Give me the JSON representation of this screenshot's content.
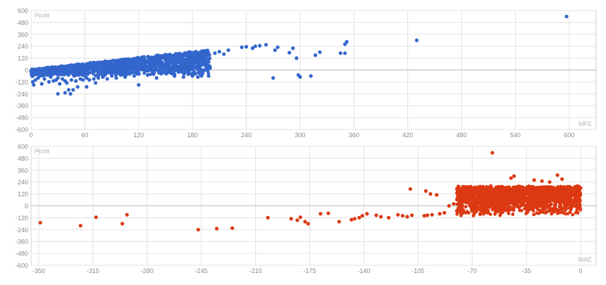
{
  "chart_data": [
    {
      "type": "scatter",
      "ylabel": "Profit",
      "xlabel": "MFE",
      "xlim": [
        0,
        630
      ],
      "ylim": [
        -600,
        600
      ],
      "xticks": [
        "0",
        "60",
        "120",
        "180",
        "240",
        "300",
        "360",
        "420",
        "480",
        "540",
        "600"
      ],
      "yticks": [
        "600",
        "480",
        "360",
        "240",
        "120",
        "0",
        "-120",
        "-240",
        "-360",
        "-480",
        "-600"
      ],
      "grid": true,
      "colors": {
        "series": "#3366cc",
        "grid": "#e3e3e3",
        "tick_text": "#8a8a8a",
        "label_text": "#b5b5b5"
      },
      "series": [
        {
          "points": [
            [
              0,
              -10
            ],
            [
              2,
              -120
            ],
            [
              3,
              -150
            ],
            [
              5,
              -100
            ],
            [
              8,
              -80
            ],
            [
              10,
              -60
            ],
            [
              12,
              -140
            ],
            [
              15,
              -90
            ],
            [
              18,
              -50
            ],
            [
              20,
              -120
            ],
            [
              22,
              -70
            ],
            [
              25,
              -110
            ],
            [
              28,
              -100
            ],
            [
              30,
              -80
            ],
            [
              30,
              -240
            ],
            [
              32,
              -140
            ],
            [
              35,
              -90
            ],
            [
              38,
              -110
            ],
            [
              38,
              -230
            ],
            [
              40,
              -130
            ],
            [
              42,
              -200
            ],
            [
              44,
              -240
            ],
            [
              45,
              -100
            ],
            [
              47,
              -200
            ],
            [
              48,
              -60
            ],
            [
              50,
              -110
            ],
            [
              52,
              -170
            ],
            [
              55,
              -90
            ],
            [
              58,
              -100
            ],
            [
              60,
              -60
            ],
            [
              62,
              -80
            ],
            [
              62,
              -170
            ],
            [
              65,
              -100
            ],
            [
              70,
              -90
            ],
            [
              72,
              -130
            ],
            [
              75,
              -80
            ],
            [
              80,
              -70
            ],
            [
              85,
              -90
            ],
            [
              90,
              -60
            ],
            [
              95,
              -80
            ],
            [
              100,
              -50
            ],
            [
              105,
              -70
            ],
            [
              110,
              -40
            ],
            [
              115,
              -60
            ],
            [
              120,
              -150
            ],
            [
              130,
              -50
            ],
            [
              140,
              -80
            ],
            [
              145,
              -30
            ],
            [
              160,
              -60
            ],
            [
              170,
              -70
            ],
            [
              175,
              -20
            ],
            [
              180,
              -60
            ],
            [
              186,
              -70
            ],
            [
              190,
              -60
            ],
            [
              198,
              -60
            ],
            [
              205,
              170
            ],
            [
              210,
              185
            ],
            [
              215,
              160
            ],
            [
              220,
              200
            ],
            [
              235,
              230
            ],
            [
              240,
              235
            ],
            [
              247,
              220
            ],
            [
              250,
              240
            ],
            [
              255,
              245
            ],
            [
              262,
              255
            ],
            [
              270,
              -80
            ],
            [
              272,
              200
            ],
            [
              275,
              230
            ],
            [
              288,
              175
            ],
            [
              292,
              220
            ],
            [
              296,
              120
            ],
            [
              298,
              -50
            ],
            [
              300,
              -70
            ],
            [
              312,
              -60
            ],
            [
              317,
              150
            ],
            [
              322,
              180
            ],
            [
              345,
              170
            ],
            [
              350,
              260
            ],
            [
              352,
              285
            ],
            [
              350,
              170
            ],
            [
              430,
              300
            ],
            [
              597,
              540
            ]
          ]
        }
      ]
    },
    {
      "type": "scatter",
      "ylabel": "Profit",
      "xlabel": "MAE",
      "xlim": [
        -355,
        10
      ],
      "ylim": [
        -600,
        600
      ],
      "xticks": [
        "-350",
        "-315",
        "-280",
        "-245",
        "-210",
        "-175",
        "-140",
        "-105",
        "-70",
        "-35",
        "0"
      ],
      "yticks": [
        "600",
        "480",
        "360",
        "240",
        "120",
        "0",
        "-120",
        "-240",
        "-360",
        "-480",
        "-600"
      ],
      "grid": true,
      "colors": {
        "series": "#dc3912",
        "grid": "#e3e3e3",
        "tick_text": "#8a8a8a",
        "label_text": "#b5b5b5"
      },
      "series": [
        {
          "points": [
            [
              -349,
              -170
            ],
            [
              -323,
              -200
            ],
            [
              -313,
              -115
            ],
            [
              -296,
              -180
            ],
            [
              -293,
              -90
            ],
            [
              -247,
              -240
            ],
            [
              -235,
              -230
            ],
            [
              -225,
              -225
            ],
            [
              -202,
              -120
            ],
            [
              -187,
              -130
            ],
            [
              -183,
              -145
            ],
            [
              -181,
              -115
            ],
            [
              -178,
              -160
            ],
            [
              -176,
              -180
            ],
            [
              -168,
              -80
            ],
            [
              -163,
              -75
            ],
            [
              -156,
              -160
            ],
            [
              -148,
              -140
            ],
            [
              -146,
              -130
            ],
            [
              -143,
              -120
            ],
            [
              -141,
              -100
            ],
            [
              -138,
              -80
            ],
            [
              -132,
              -95
            ],
            [
              -129,
              -110
            ],
            [
              -124,
              -120
            ],
            [
              -118,
              -90
            ],
            [
              -115,
              -100
            ],
            [
              -112,
              -110
            ],
            [
              -109,
              -95
            ],
            [
              -101,
              -100
            ],
            [
              -99,
              -95
            ],
            [
              -96,
              -90
            ],
            [
              -91,
              -80
            ],
            [
              -88,
              -70
            ],
            [
              -80,
              -50
            ],
            [
              -75,
              60
            ],
            [
              -72,
              80
            ],
            [
              -67,
              150
            ],
            [
              -62,
              110
            ],
            [
              -58,
              200
            ],
            [
              -57,
              535
            ],
            [
              -53,
              140
            ],
            [
              -50,
              160
            ],
            [
              -45,
              280
            ],
            [
              -43,
              300
            ],
            [
              -40,
              180
            ],
            [
              -35,
              60
            ],
            [
              -30,
              260
            ],
            [
              -25,
              250
            ],
            [
              -20,
              240
            ],
            [
              -15,
              310
            ],
            [
              -12,
              270
            ],
            [
              -8,
              160
            ],
            [
              -5,
              120
            ],
            [
              -2,
              200
            ],
            [
              0,
              180
            ],
            [
              -110,
              170
            ],
            [
              -100,
              150
            ],
            [
              -97,
              120
            ],
            [
              -93,
              110
            ],
            [
              -85,
              0
            ],
            [
              -82,
              20
            ],
            [
              -78,
              -30
            ]
          ]
        }
      ]
    }
  ]
}
